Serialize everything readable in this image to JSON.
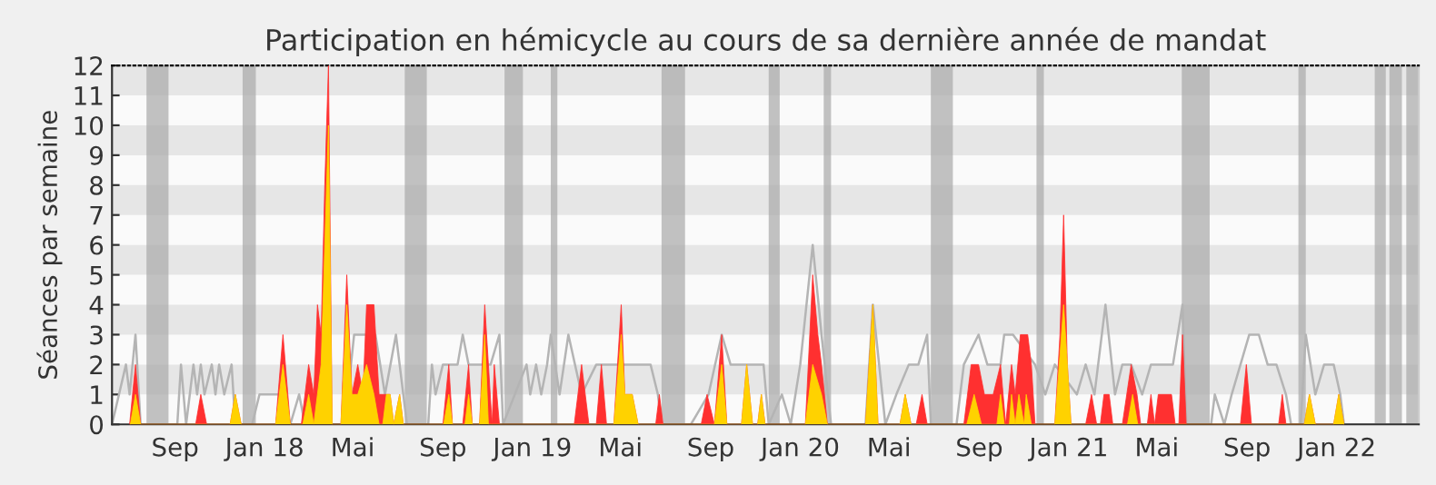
{
  "chart_data": {
    "type": "area",
    "title": "Participation en hémicycle au cours de sa dernière année de mandat",
    "ylabel": "Séances par semaine",
    "xlim": [
      "2017-06-07",
      "2022-04-23"
    ],
    "ylim": [
      0,
      12
    ],
    "yticks": [
      0,
      1,
      2,
      3,
      4,
      5,
      6,
      7,
      8,
      9,
      10,
      11,
      12
    ],
    "xticks": [
      {
        "value": "2017-09-01",
        "label": "Sep"
      },
      {
        "value": "2018-01-01",
        "label": "Jan 18"
      },
      {
        "value": "2018-05-01",
        "label": "Mai"
      },
      {
        "value": "2018-09-01",
        "label": "Sep"
      },
      {
        "value": "2019-01-01",
        "label": "Jan 19"
      },
      {
        "value": "2019-05-01",
        "label": "Mai"
      },
      {
        "value": "2019-09-01",
        "label": "Sep"
      },
      {
        "value": "2020-01-01",
        "label": "Jan 20"
      },
      {
        "value": "2020-05-01",
        "label": "Mai"
      },
      {
        "value": "2020-09-01",
        "label": "Sep"
      },
      {
        "value": "2021-01-01",
        "label": "Jan 21"
      },
      {
        "value": "2021-05-01",
        "label": "Mai"
      },
      {
        "value": "2021-09-01",
        "label": "Sep"
      },
      {
        "value": "2022-01-01",
        "label": "Jan 22"
      }
    ],
    "grid": false,
    "legend": false,
    "bands": [
      {
        "axis": "y",
        "from": 1,
        "to": 2,
        "color": "#e6e6e6"
      },
      {
        "axis": "y",
        "from": 3,
        "to": 4,
        "color": "#e6e6e6"
      },
      {
        "axis": "y",
        "from": 5,
        "to": 6,
        "color": "#e6e6e6"
      },
      {
        "axis": "y",
        "from": 7,
        "to": 8,
        "color": "#e6e6e6"
      },
      {
        "axis": "y",
        "from": 9,
        "to": 10,
        "color": "#e6e6e6"
      },
      {
        "axis": "y",
        "from": 11,
        "to": 12,
        "color": "#e6e6e6"
      },
      {
        "axis": "x",
        "from": "2017-07-24",
        "to": "2017-08-23",
        "color": "#a8a8a8"
      },
      {
        "axis": "x",
        "from": "2017-12-02",
        "to": "2017-12-20",
        "color": "#a8a8a8"
      },
      {
        "axis": "x",
        "from": "2018-07-11",
        "to": "2018-08-10",
        "color": "#a8a8a8"
      },
      {
        "axis": "x",
        "from": "2018-11-24",
        "to": "2018-12-19",
        "color": "#a8a8a8"
      },
      {
        "axis": "x",
        "from": "2019-01-26",
        "to": "2019-02-04",
        "color": "#a8a8a8"
      },
      {
        "axis": "x",
        "from": "2019-06-26",
        "to": "2019-07-28",
        "color": "#a8a8a8"
      },
      {
        "axis": "x",
        "from": "2019-11-19",
        "to": "2019-12-04",
        "color": "#a8a8a8"
      },
      {
        "axis": "x",
        "from": "2020-02-02",
        "to": "2020-02-12",
        "color": "#a8a8a8"
      },
      {
        "axis": "x",
        "from": "2020-06-27",
        "to": "2020-07-27",
        "color": "#a8a8a8"
      },
      {
        "axis": "x",
        "from": "2020-11-18",
        "to": "2020-11-28",
        "color": "#a8a8a8"
      },
      {
        "axis": "x",
        "from": "2021-06-04",
        "to": "2021-07-12",
        "color": "#a8a8a8"
      },
      {
        "axis": "x",
        "from": "2021-11-10",
        "to": "2021-11-20",
        "color": "#a8a8a8"
      },
      {
        "axis": "x",
        "from": "2022-02-22",
        "to": "2022-03-09",
        "color": "#a8a8a8"
      },
      {
        "axis": "x",
        "from": "2022-03-14",
        "to": "2022-03-31",
        "color": "#a8a8a8"
      },
      {
        "axis": "x",
        "from": "2022-04-06",
        "to": "2022-04-23",
        "color": "#a8a8a8"
      }
    ],
    "series": [
      {
        "type": "line",
        "color": "#b4b4b4",
        "x": [
          "2017-06-07",
          "2017-06-26",
          "2017-07-01",
          "2017-07-09",
          "2017-07-16",
          "2017-09-04",
          "2017-09-09",
          "2017-09-16",
          "2017-09-26",
          "2017-10-01",
          "2017-10-06",
          "2017-10-11",
          "2017-10-21",
          "2017-10-26",
          "2017-10-31",
          "2017-11-07",
          "2017-11-17",
          "2017-11-22",
          "2017-12-15",
          "2017-12-25",
          "2018-01-16",
          "2018-01-23",
          "2018-02-05",
          "2018-02-17",
          "2018-02-25",
          "2018-04-20",
          "2018-05-03",
          "2018-06-01",
          "2018-06-14",
          "2018-06-29",
          "2018-07-09",
          "2018-07-14",
          "2018-08-12",
          "2018-08-17",
          "2018-08-22",
          "2018-09-01",
          "2018-09-09",
          "2018-09-21",
          "2018-09-28",
          "2018-10-06",
          "2018-10-16",
          "2018-10-26",
          "2018-11-05",
          "2018-11-17",
          "2018-11-22",
          "2018-12-24",
          "2018-12-29",
          "2019-01-06",
          "2019-01-13",
          "2019-01-21",
          "2019-01-26",
          "2019-02-07",
          "2019-02-19",
          "2019-03-09",
          "2019-03-29",
          "2019-04-10",
          "2019-04-22",
          "2019-05-17",
          "2019-05-30",
          "2019-06-11",
          "2019-06-21",
          "2019-06-26",
          "2019-08-05",
          "2019-08-29",
          "2019-09-16",
          "2019-09-28",
          "2019-10-11",
          "2019-11-12",
          "2019-11-19",
          "2019-12-07",
          "2019-12-19",
          "2020-01-01",
          "2020-01-18",
          "2020-01-30",
          "2020-02-12",
          "2020-03-30",
          "2020-04-09",
          "2020-04-26",
          "2020-05-11",
          "2020-05-28",
          "2020-06-10",
          "2020-06-22",
          "2020-06-27",
          "2020-08-01",
          "2020-08-11",
          "2020-08-31",
          "2020-09-12",
          "2020-09-30",
          "2020-10-05",
          "2020-10-17",
          "2020-11-16",
          "2020-11-30",
          "2020-12-13",
          "2021-01-12",
          "2021-01-24",
          "2021-02-05",
          "2021-02-20",
          "2021-03-05",
          "2021-03-15",
          "2021-03-27",
          "2021-04-11",
          "2021-04-23",
          "2021-05-11",
          "2021-05-23",
          "2021-06-05",
          "2021-06-10",
          "2021-07-14",
          "2021-07-19",
          "2021-08-01",
          "2021-08-11",
          "2021-08-23",
          "2021-09-04",
          "2021-09-17",
          "2021-09-29",
          "2021-10-11",
          "2021-10-24",
          "2021-10-31",
          "2021-11-13",
          "2021-11-20",
          "2021-12-03",
          "2021-12-15",
          "2021-12-28",
          "2022-01-06",
          "2022-01-11",
          "2022-04-23"
        ],
        "values": [
          0,
          2,
          1,
          3,
          0,
          0,
          2,
          0,
          2,
          1,
          2,
          1,
          2,
          1,
          2,
          1,
          2,
          0,
          0,
          1,
          1,
          1,
          0,
          1,
          0,
          0,
          3,
          3,
          1,
          3,
          1,
          0,
          0,
          2,
          1,
          2,
          2,
          2,
          3,
          2,
          2,
          2,
          2,
          3,
          0,
          2,
          1,
          2,
          1,
          2,
          3,
          1,
          3,
          1,
          2,
          2,
          2,
          2,
          2,
          2,
          1,
          0,
          0,
          1,
          3,
          2,
          2,
          2,
          0,
          1,
          0,
          2,
          6,
          3,
          0,
          0,
          4,
          0,
          1,
          2,
          2,
          3,
          0,
          0,
          2,
          3,
          2,
          2,
          3,
          3,
          2,
          1,
          2,
          1,
          2,
          1,
          4,
          1,
          2,
          2,
          1,
          2,
          2,
          2,
          4,
          0,
          0,
          1,
          0,
          1,
          2,
          3,
          3,
          2,
          2,
          1,
          0,
          0,
          3,
          1,
          2,
          2,
          1,
          0,
          0
        ]
      },
      {
        "color": "#ff3030",
        "x": [
          "2017-07-01",
          "2017-07-09",
          "2017-07-16",
          "2017-09-29",
          "2017-10-06",
          "2017-10-14",
          "2017-11-15",
          "2017-11-22",
          "2017-11-30",
          "2018-01-16",
          "2018-01-26",
          "2018-02-05",
          "2018-02-20",
          "2018-03-02",
          "2018-03-09",
          "2018-03-14",
          "2018-03-19",
          "2018-03-24",
          "2018-03-29",
          "2018-04-03",
          "2018-04-15",
          "2018-04-23",
          "2018-04-30",
          "2018-05-08",
          "2018-05-15",
          "2018-05-20",
          "2018-05-30",
          "2018-06-06",
          "2018-06-11",
          "2018-06-21",
          "2018-06-26",
          "2018-07-04",
          "2018-07-09",
          "2018-09-01",
          "2018-09-09",
          "2018-09-14",
          "2018-09-28",
          "2018-10-06",
          "2018-10-11",
          "2018-10-21",
          "2018-10-28",
          "2018-11-02",
          "2018-11-07",
          "2018-11-10",
          "2018-11-17",
          "2019-02-27",
          "2019-03-09",
          "2019-03-19",
          "2019-03-29",
          "2019-04-05",
          "2019-04-12",
          "2019-04-22",
          "2019-05-02",
          "2019-05-07",
          "2019-05-17",
          "2019-05-25",
          "2019-06-18",
          "2019-06-23",
          "2019-06-28",
          "2019-08-19",
          "2019-08-27",
          "2019-09-06",
          "2019-09-16",
          "2019-09-23",
          "2019-10-13",
          "2019-10-20",
          "2019-10-28",
          "2019-11-04",
          "2019-11-09",
          "2019-11-14",
          "2020-01-08",
          "2020-01-18",
          "2020-01-25",
          "2020-01-30",
          "2020-02-07",
          "2020-03-30",
          "2020-04-09",
          "2020-04-16",
          "2020-05-16",
          "2020-05-23",
          "2020-05-31",
          "2020-06-07",
          "2020-06-15",
          "2020-06-22",
          "2020-08-11",
          "2020-08-21",
          "2020-08-31",
          "2020-09-08",
          "2020-09-20",
          "2020-09-30",
          "2020-10-07",
          "2020-10-15",
          "2020-10-20",
          "2020-10-27",
          "2020-11-06",
          "2020-11-11",
          "2020-11-16",
          "2020-12-13",
          "2020-12-20",
          "2020-12-25",
          "2020-12-30",
          "2021-01-04",
          "2021-01-24",
          "2021-02-01",
          "2021-02-08",
          "2021-02-13",
          "2021-02-18",
          "2021-02-25",
          "2021-03-02",
          "2021-03-15",
          "2021-03-27",
          "2021-04-04",
          "2021-04-09",
          "2021-04-18",
          "2021-04-23",
          "2021-04-28",
          "2021-05-03",
          "2021-05-21",
          "2021-05-26",
          "2021-05-31",
          "2021-06-05",
          "2021-06-10",
          "2021-08-23",
          "2021-08-31",
          "2021-09-07",
          "2021-10-14",
          "2021-10-19",
          "2021-10-24",
          "2021-11-18",
          "2021-11-25",
          "2021-12-03",
          "2021-12-28",
          "2022-01-04",
          "2022-01-11"
        ],
        "values": [
          0,
          2,
          0,
          0,
          1,
          0,
          0,
          1,
          0,
          0,
          3,
          0,
          0,
          2,
          1,
          4,
          3,
          8,
          12,
          0,
          0,
          5,
          1,
          2,
          1,
          4,
          4,
          1,
          1,
          1,
          0,
          1,
          0,
          0,
          2,
          0,
          0,
          2,
          0,
          0,
          4,
          2,
          0,
          2,
          0,
          0,
          2,
          0,
          0,
          2,
          0,
          0,
          4,
          1,
          1,
          0,
          0,
          1,
          0,
          0,
          1,
          0,
          3,
          0,
          0,
          2,
          0,
          0,
          1,
          0,
          0,
          5,
          3,
          2,
          0,
          0,
          4,
          0,
          0,
          1,
          0,
          0,
          1,
          0,
          0,
          2,
          2,
          1,
          1,
          2,
          0,
          2,
          1,
          3,
          3,
          2,
          0,
          0,
          3,
          7,
          2,
          0,
          0,
          1,
          0,
          0,
          1,
          1,
          0,
          0,
          2,
          1,
          0,
          0,
          1,
          0,
          1,
          1,
          0,
          0,
          3,
          0,
          0,
          2,
          0,
          0,
          1,
          0,
          0,
          1,
          0,
          0,
          1,
          0
        ]
      },
      {
        "color": "#ffd200",
        "x": [
          "2017-07-02",
          "2017-07-09",
          "2017-07-16",
          "2017-11-15",
          "2017-11-22",
          "2017-11-30",
          "2018-01-16",
          "2018-01-26",
          "2018-02-05",
          "2018-02-22",
          "2018-03-02",
          "2018-03-09",
          "2018-03-19",
          "2018-03-29",
          "2018-04-03",
          "2018-04-15",
          "2018-04-23",
          "2018-04-30",
          "2018-05-08",
          "2018-05-20",
          "2018-05-30",
          "2018-06-06",
          "2018-06-11",
          "2018-06-16",
          "2018-06-21",
          "2018-06-26",
          "2018-07-04",
          "2018-07-09",
          "2018-09-02",
          "2018-09-09",
          "2018-09-14",
          "2018-10-01",
          "2018-10-06",
          "2018-10-11",
          "2018-10-21",
          "2018-10-28",
          "2018-11-02",
          "2019-04-22",
          "2019-05-02",
          "2019-05-07",
          "2019-05-17",
          "2019-05-25",
          "2019-09-06",
          "2019-09-16",
          "2019-09-23",
          "2019-10-13",
          "2019-10-20",
          "2019-10-28",
          "2019-11-04",
          "2019-11-09",
          "2019-11-14",
          "2020-01-08",
          "2020-01-18",
          "2020-01-30",
          "2020-02-07",
          "2020-03-30",
          "2020-04-09",
          "2020-04-16",
          "2020-05-16",
          "2020-05-23",
          "2020-05-31",
          "2020-08-15",
          "2020-08-25",
          "2020-09-04",
          "2020-09-25",
          "2020-09-30",
          "2020-10-05",
          "2020-10-12",
          "2020-10-15",
          "2020-10-20",
          "2020-10-25",
          "2020-11-01",
          "2020-11-04",
          "2020-11-11",
          "2020-12-13",
          "2020-12-25",
          "2021-01-04",
          "2021-03-22",
          "2021-03-29",
          "2021-04-05",
          "2021-11-18",
          "2021-11-25",
          "2021-12-03",
          "2021-12-28",
          "2022-01-04",
          "2022-01-11"
        ],
        "values": [
          0,
          1,
          0,
          0,
          1,
          0,
          0,
          2,
          0,
          0,
          1,
          0,
          2,
          10,
          0,
          0,
          4,
          1,
          1,
          2,
          1,
          0,
          0,
          1,
          1,
          0,
          1,
          0,
          0,
          1,
          0,
          0,
          1,
          0,
          0,
          3,
          0,
          0,
          3,
          1,
          1,
          0,
          0,
          2,
          0,
          0,
          2,
          0,
          0,
          1,
          0,
          0,
          2,
          1,
          0,
          0,
          4,
          0,
          0,
          1,
          0,
          0,
          1,
          0,
          0,
          1,
          0,
          0,
          1,
          0,
          1,
          0,
          1,
          0,
          0,
          4,
          0,
          0,
          1,
          0,
          0,
          1,
          0,
          0,
          1,
          0
        ]
      }
    ]
  }
}
